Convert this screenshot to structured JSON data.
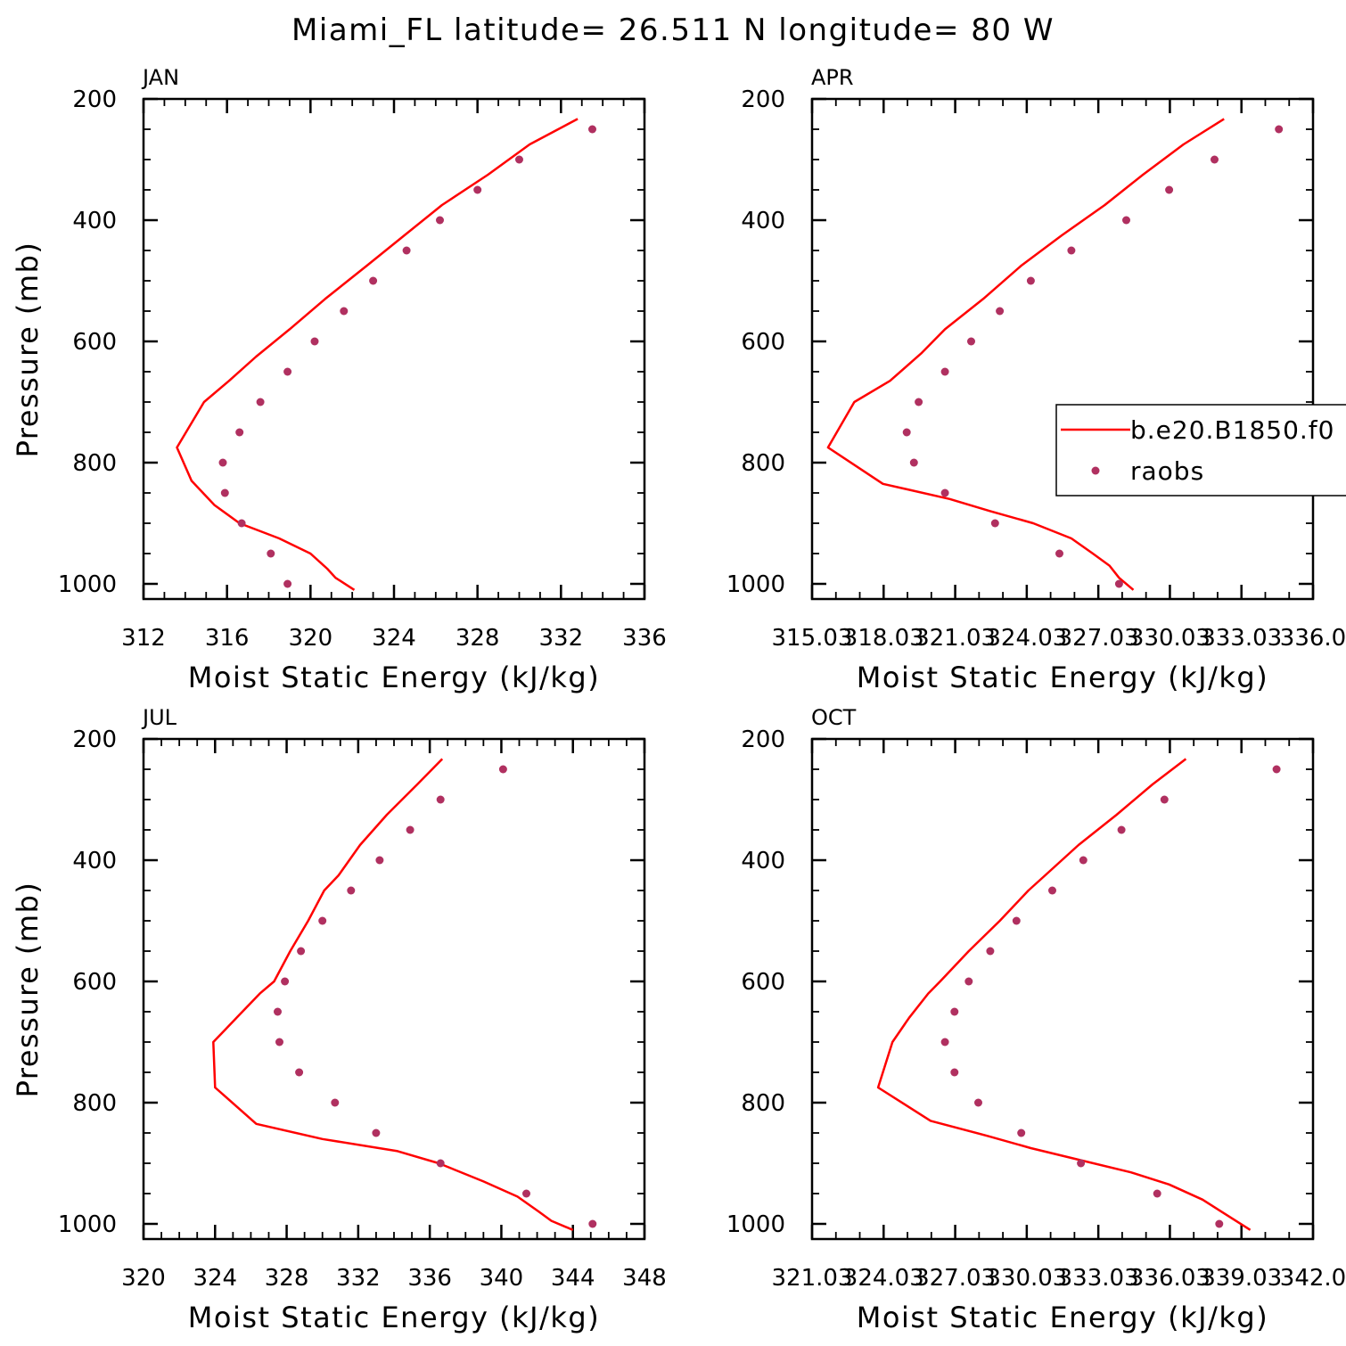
{
  "figure": {
    "title": "Miami_FL  latitude= 26.511 N longitude= 80 W"
  },
  "legend": {
    "model_label": "b.e20.B1850.f0",
    "obs_label": "raobs",
    "panel": "APR",
    "placement": "right-middle of APR panel, clipped at figure edge"
  },
  "colors": {
    "model_line": "#ff0000",
    "obs_marker": "#b03060",
    "axes": "#000000"
  },
  "chart_data": [
    {
      "type": "line",
      "panel_label": "JAN",
      "xlabel": "Moist Static Energy (kJ/kg)",
      "ylabel": "Pressure (mb)",
      "xlim": [
        312,
        336
      ],
      "ylim": [
        200,
        1025
      ],
      "y_inverted": true,
      "x_ticks": [
        312,
        316,
        320,
        324,
        328,
        332,
        336
      ],
      "x_tick_labels": [
        "312",
        "316",
        "320",
        "324",
        "328",
        "332",
        "336"
      ],
      "x_minor_step": 1,
      "y_ticks": [
        200,
        400,
        600,
        800,
        1000
      ],
      "y_tick_labels": [
        "200",
        "400",
        "600",
        "800",
        "1000"
      ],
      "y_minor_step": 50,
      "series": [
        {
          "name": "b.e20.B1850.f0",
          "kind": "line",
          "points": [
            [
              332.8,
              233
            ],
            [
              330.5,
              275
            ],
            [
              328.5,
              325
            ],
            [
              326.3,
              375
            ],
            [
              324.5,
              425
            ],
            [
              322.7,
              475
            ],
            [
              320.7,
              530
            ],
            [
              319.0,
              580
            ],
            [
              317.4,
              625
            ],
            [
              316.1,
              665
            ],
            [
              314.9,
              700
            ],
            [
              313.6,
              775
            ],
            [
              314.3,
              830
            ],
            [
              315.4,
              870
            ],
            [
              316.6,
              900
            ],
            [
              318.5,
              925
            ],
            [
              320.0,
              950
            ],
            [
              320.8,
              975
            ],
            [
              321.2,
              990
            ],
            [
              322.1,
              1010
            ]
          ]
        },
        {
          "name": "raobs",
          "kind": "scatter",
          "points": [
            [
              333.5,
              250
            ],
            [
              330.0,
              300
            ],
            [
              328.0,
              350
            ],
            [
              326.2,
              400
            ],
            [
              324.6,
              450
            ],
            [
              323.0,
              500
            ],
            [
              321.6,
              550
            ],
            [
              320.2,
              600
            ],
            [
              318.9,
              650
            ],
            [
              317.6,
              700
            ],
            [
              316.6,
              750
            ],
            [
              315.8,
              800
            ],
            [
              315.9,
              850
            ],
            [
              316.7,
              900
            ],
            [
              318.1,
              950
            ],
            [
              318.9,
              1000
            ]
          ]
        }
      ]
    },
    {
      "type": "line",
      "panel_label": "APR",
      "xlabel": "Moist Static Energy (kJ/kg)",
      "ylabel": "",
      "xlim": [
        315.03,
        336.03
      ],
      "ylim": [
        200,
        1025
      ],
      "y_inverted": true,
      "x_ticks": [
        315.03,
        318.03,
        321.03,
        324.03,
        327.03,
        330.03,
        333.03,
        336.03
      ],
      "x_tick_labels": [
        "315.03",
        "318.03",
        "321.03",
        "324.03",
        "327.03",
        "330.03",
        "333.03",
        "336.0"
      ],
      "x_minor_step": 1,
      "y_ticks": [
        200,
        400,
        600,
        800,
        1000
      ],
      "y_tick_labels": [
        "200",
        "400",
        "600",
        "800",
        "1000"
      ],
      "y_minor_step": 50,
      "series": [
        {
          "name": "b.e20.B1850.f0",
          "kind": "line",
          "points": [
            [
              332.3,
              233
            ],
            [
              330.6,
              275
            ],
            [
              328.9,
              325
            ],
            [
              327.3,
              375
            ],
            [
              325.5,
              425
            ],
            [
              323.8,
              475
            ],
            [
              322.2,
              530
            ],
            [
              320.6,
              580
            ],
            [
              319.6,
              620
            ],
            [
              318.3,
              665
            ],
            [
              316.8,
              700
            ],
            [
              315.7,
              775
            ],
            [
              318.0,
              835
            ],
            [
              320.8,
              860
            ],
            [
              322.5,
              880
            ],
            [
              324.3,
              900
            ],
            [
              325.9,
              925
            ],
            [
              326.8,
              950
            ],
            [
              327.5,
              970
            ],
            [
              327.9,
              990
            ],
            [
              328.5,
              1010
            ]
          ]
        },
        {
          "name": "raobs",
          "kind": "scatter",
          "points": [
            [
              334.6,
              250
            ],
            [
              331.9,
              300
            ],
            [
              330.0,
              350
            ],
            [
              328.2,
              400
            ],
            [
              325.9,
              450
            ],
            [
              324.2,
              500
            ],
            [
              322.9,
              550
            ],
            [
              321.7,
              600
            ],
            [
              320.6,
              650
            ],
            [
              319.5,
              700
            ],
            [
              319.0,
              750
            ],
            [
              319.3,
              800
            ],
            [
              320.6,
              850
            ],
            [
              322.7,
              900
            ],
            [
              325.4,
              950
            ],
            [
              327.9,
              1000
            ]
          ]
        }
      ]
    },
    {
      "type": "line",
      "panel_label": "JUL",
      "xlabel": "Moist Static Energy (kJ/kg)",
      "ylabel": "Pressure (mb)",
      "xlim": [
        320,
        348
      ],
      "ylim": [
        200,
        1025
      ],
      "y_inverted": true,
      "x_ticks": [
        320,
        324,
        328,
        332,
        336,
        340,
        344,
        348
      ],
      "x_tick_labels": [
        "320",
        "324",
        "328",
        "332",
        "336",
        "340",
        "344",
        "348"
      ],
      "x_minor_step": 1,
      "y_ticks": [
        200,
        400,
        600,
        800,
        1000
      ],
      "y_tick_labels": [
        "200",
        "400",
        "600",
        "800",
        "1000"
      ],
      "y_minor_step": 50,
      "series": [
        {
          "name": "b.e20.B1850.f0",
          "kind": "line",
          "points": [
            [
              336.7,
              233
            ],
            [
              335.3,
              275
            ],
            [
              333.6,
              325
            ],
            [
              332.1,
              375
            ],
            [
              330.9,
              425
            ],
            [
              330.1,
              450
            ],
            [
              329.2,
              500
            ],
            [
              328.2,
              550
            ],
            [
              327.3,
              600
            ],
            [
              326.5,
              620
            ],
            [
              325.2,
              660
            ],
            [
              323.9,
              700
            ],
            [
              324.0,
              775
            ],
            [
              326.3,
              835
            ],
            [
              330.0,
              860
            ],
            [
              334.2,
              880
            ],
            [
              336.5,
              900
            ],
            [
              339.0,
              930
            ],
            [
              340.9,
              955
            ],
            [
              342.1,
              980
            ],
            [
              342.8,
              995
            ],
            [
              344.0,
              1010
            ]
          ]
        },
        {
          "name": "raobs",
          "kind": "scatter",
          "points": [
            [
              340.1,
              250
            ],
            [
              336.6,
              300
            ],
            [
              334.9,
              350
            ],
            [
              333.2,
              400
            ],
            [
              331.6,
              450
            ],
            [
              330.0,
              500
            ],
            [
              328.8,
              550
            ],
            [
              327.9,
              600
            ],
            [
              327.5,
              650
            ],
            [
              327.6,
              700
            ],
            [
              328.7,
              750
            ],
            [
              330.7,
              800
            ],
            [
              333.0,
              850
            ],
            [
              336.6,
              900
            ],
            [
              341.4,
              950
            ],
            [
              345.1,
              1000
            ]
          ]
        }
      ]
    },
    {
      "type": "line",
      "panel_label": "OCT",
      "xlabel": "Moist Static Energy (kJ/kg)",
      "ylabel": "",
      "xlim": [
        321.03,
        342.03
      ],
      "ylim": [
        200,
        1025
      ],
      "y_inverted": true,
      "x_ticks": [
        321.03,
        324.03,
        327.03,
        330.03,
        333.03,
        336.03,
        339.03,
        342.03
      ],
      "x_tick_labels": [
        "321.03",
        "324.03",
        "327.03",
        "330.03",
        "333.03",
        "336.03",
        "339.03",
        "342.0"
      ],
      "x_minor_step": 1,
      "y_ticks": [
        200,
        400,
        600,
        800,
        1000
      ],
      "y_tick_labels": [
        "200",
        "400",
        "600",
        "800",
        "1000"
      ],
      "y_minor_step": 50,
      "series": [
        {
          "name": "b.e20.B1850.f0",
          "kind": "line",
          "points": [
            [
              336.7,
              233
            ],
            [
              335.3,
              275
            ],
            [
              333.8,
              325
            ],
            [
              332.2,
              375
            ],
            [
              330.8,
              425
            ],
            [
              330.1,
              450
            ],
            [
              328.9,
              500
            ],
            [
              327.6,
              550
            ],
            [
              326.4,
              600
            ],
            [
              325.9,
              620
            ],
            [
              325.1,
              660
            ],
            [
              324.4,
              700
            ],
            [
              323.8,
              775
            ],
            [
              326.0,
              830
            ],
            [
              328.4,
              855
            ],
            [
              330.2,
              875
            ],
            [
              332.3,
              895
            ],
            [
              334.4,
              915
            ],
            [
              336.0,
              935
            ],
            [
              337.4,
              960
            ],
            [
              338.2,
              980
            ],
            [
              339.4,
              1010
            ]
          ]
        },
        {
          "name": "raobs",
          "kind": "scatter",
          "points": [
            [
              340.5,
              250
            ],
            [
              335.8,
              300
            ],
            [
              334.0,
              350
            ],
            [
              332.4,
              400
            ],
            [
              331.1,
              450
            ],
            [
              329.6,
              500
            ],
            [
              328.5,
              550
            ],
            [
              327.6,
              600
            ],
            [
              327.0,
              650
            ],
            [
              326.6,
              700
            ],
            [
              327.0,
              750
            ],
            [
              328.0,
              800
            ],
            [
              329.8,
              850
            ],
            [
              332.3,
              900
            ],
            [
              335.5,
              950
            ],
            [
              338.1,
              1000
            ]
          ]
        }
      ]
    }
  ]
}
